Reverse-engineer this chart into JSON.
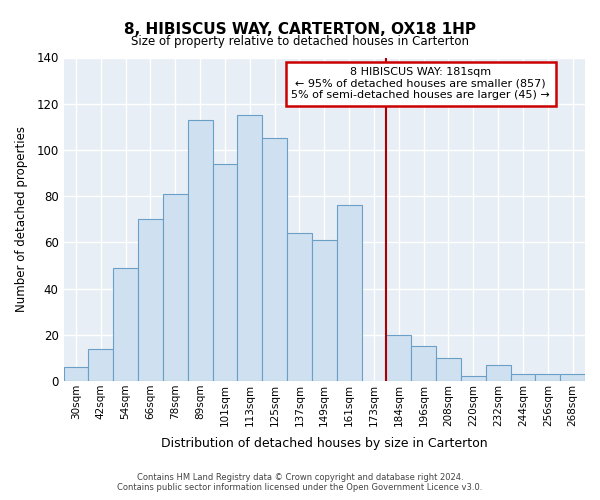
{
  "title": "8, HIBISCUS WAY, CARTERTON, OX18 1HP",
  "subtitle": "Size of property relative to detached houses in Carterton",
  "xlabel": "Distribution of detached houses by size in Carterton",
  "ylabel": "Number of detached properties",
  "bar_labels": [
    "30sqm",
    "42sqm",
    "54sqm",
    "66sqm",
    "78sqm",
    "89sqm",
    "101sqm",
    "113sqm",
    "125sqm",
    "137sqm",
    "149sqm",
    "161sqm",
    "173sqm",
    "184sqm",
    "196sqm",
    "208sqm",
    "220sqm",
    "232sqm",
    "244sqm",
    "256sqm",
    "268sqm"
  ],
  "bar_values": [
    6,
    14,
    49,
    70,
    81,
    113,
    94,
    115,
    105,
    64,
    61,
    76,
    0,
    20,
    15,
    10,
    2,
    7,
    3,
    3,
    3
  ],
  "bar_color": "#cfe0f0",
  "bar_edge_color": "#6aa0c8",
  "vline_color": "#aa0000",
  "annotation_line1": "8 HIBISCUS WAY: 181sqm",
  "annotation_line2": "← 95% of detached houses are smaller (857)",
  "annotation_line3": "5% of semi-detached houses are larger (45) →",
  "annotation_box_color": "#ffffff",
  "annotation_box_edge_color": "#cc0000",
  "ylim": [
    0,
    140
  ],
  "yticks": [
    0,
    20,
    40,
    60,
    80,
    100,
    120,
    140
  ],
  "footer_line1": "Contains HM Land Registry data © Crown copyright and database right 2024.",
  "footer_line2": "Contains public sector information licensed under the Open Government Licence v3.0.",
  "bg_color": "#ffffff",
  "plot_bg_color": "#e8eef5",
  "grid_color": "#ffffff"
}
